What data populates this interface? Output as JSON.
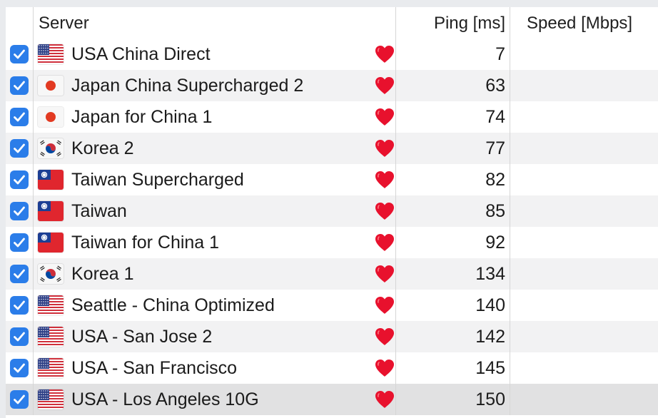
{
  "header": {
    "server": "Server",
    "ping": "Ping [ms]",
    "speed": "Speed [Mbps]"
  },
  "colors": {
    "checkbox": "#2b7de9",
    "heart": "#e8112d",
    "row_alt": "#f2f2f3",
    "row_selected": "#e1e1e2"
  },
  "rows": [
    {
      "name": "USA China Direct",
      "flag": "us-flag-icon",
      "ping": "7",
      "checked": true,
      "favorite": true
    },
    {
      "name": "Japan China Supercharged 2",
      "flag": "jp-flag-icon",
      "ping": "63",
      "checked": true,
      "favorite": true
    },
    {
      "name": "Japan for China 1",
      "flag": "jp-flag-icon",
      "ping": "74",
      "checked": true,
      "favorite": true
    },
    {
      "name": "Korea 2",
      "flag": "kr-flag-icon",
      "ping": "77",
      "checked": true,
      "favorite": true
    },
    {
      "name": "Taiwan Supercharged",
      "flag": "tw-flag-icon",
      "ping": "82",
      "checked": true,
      "favorite": true
    },
    {
      "name": "Taiwan",
      "flag": "tw-flag-icon",
      "ping": "85",
      "checked": true,
      "favorite": true
    },
    {
      "name": "Taiwan for China 1",
      "flag": "tw-flag-icon",
      "ping": "92",
      "checked": true,
      "favorite": true
    },
    {
      "name": "Korea 1",
      "flag": "kr-flag-icon",
      "ping": "134",
      "checked": true,
      "favorite": true
    },
    {
      "name": "Seattle - China Optimized",
      "flag": "us-flag-icon",
      "ping": "140",
      "checked": true,
      "favorite": true
    },
    {
      "name": "USA - San Jose 2",
      "flag": "us-flag-icon",
      "ping": "142",
      "checked": true,
      "favorite": true
    },
    {
      "name": "USA - San Francisco",
      "flag": "us-flag-icon",
      "ping": "145",
      "checked": true,
      "favorite": true
    },
    {
      "name": "USA - Los Angeles 10G",
      "flag": "us-flag-icon",
      "ping": "150",
      "checked": true,
      "favorite": true,
      "selected": true
    }
  ]
}
